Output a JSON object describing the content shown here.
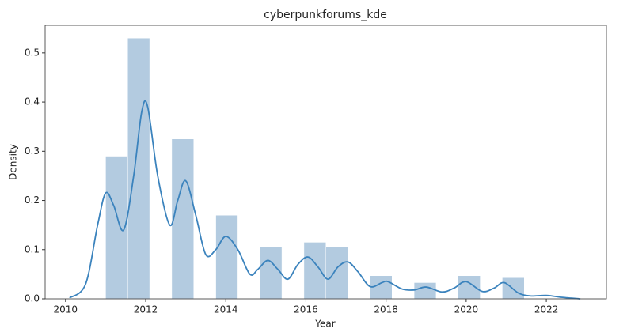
{
  "chart_data": {
    "type": "histogram",
    "title": "cyberpunkforums_kde",
    "x_label": "Year",
    "y_label": "Density",
    "bins": [
      2011,
      2011.55,
      2012.1,
      2012.65,
      2013.2,
      2013.75,
      2014.3,
      2014.85,
      2015.4,
      2015.95,
      2016.5,
      2017.05,
      2017.6,
      2018.15,
      2018.7,
      2019.25,
      2019.8,
      2020.35,
      2020.9,
      2021.45,
      2022
    ],
    "values": [
      0.29,
      0.53,
      0,
      0.325,
      0,
      0.17,
      0,
      0.105,
      0,
      0.115,
      0.105,
      0,
      0.047,
      0,
      0.033,
      0,
      0.047,
      0,
      0.043,
      0
    ],
    "color": "#b3cbe0",
    "kde": {
      "color": "#3b83bd",
      "x": [
        2010.1,
        2010.5,
        2010.8,
        2011.0,
        2011.2,
        2011.45,
        2011.7,
        2011.9,
        2012.05,
        2012.3,
        2012.6,
        2012.8,
        2013.0,
        2013.25,
        2013.5,
        2013.75,
        2014.0,
        2014.3,
        2014.6,
        2014.8,
        2015.05,
        2015.3,
        2015.55,
        2015.8,
        2016.05,
        2016.3,
        2016.55,
        2016.8,
        2017.05,
        2017.3,
        2017.6,
        2017.9,
        2018.05,
        2018.4,
        2018.7,
        2019.0,
        2019.4,
        2019.7,
        2020.0,
        2020.4,
        2020.7,
        2020.95,
        2021.3,
        2021.6,
        2022.0,
        2022.4,
        2022.85
      ],
      "values": [
        0.002,
        0.03,
        0.15,
        0.215,
        0.19,
        0.14,
        0.25,
        0.38,
        0.39,
        0.25,
        0.15,
        0.2,
        0.24,
        0.17,
        0.09,
        0.1,
        0.127,
        0.1,
        0.05,
        0.06,
        0.078,
        0.06,
        0.04,
        0.07,
        0.085,
        0.065,
        0.04,
        0.065,
        0.075,
        0.055,
        0.025,
        0.033,
        0.035,
        0.02,
        0.018,
        0.024,
        0.014,
        0.022,
        0.035,
        0.015,
        0.022,
        0.033,
        0.012,
        0.006,
        0.007,
        0.003,
        0
      ]
    },
    "xlim": [
      2009.49,
      2023.5
    ],
    "ylim": [
      0,
      0.556
    ],
    "xticks": [
      2010,
      2012,
      2014,
      2016,
      2018,
      2020,
      2022
    ],
    "yticks": [
      {
        "value": 0,
        "label": "0.0"
      },
      0.1,
      0.2,
      0.3,
      0.4,
      0.5
    ]
  }
}
